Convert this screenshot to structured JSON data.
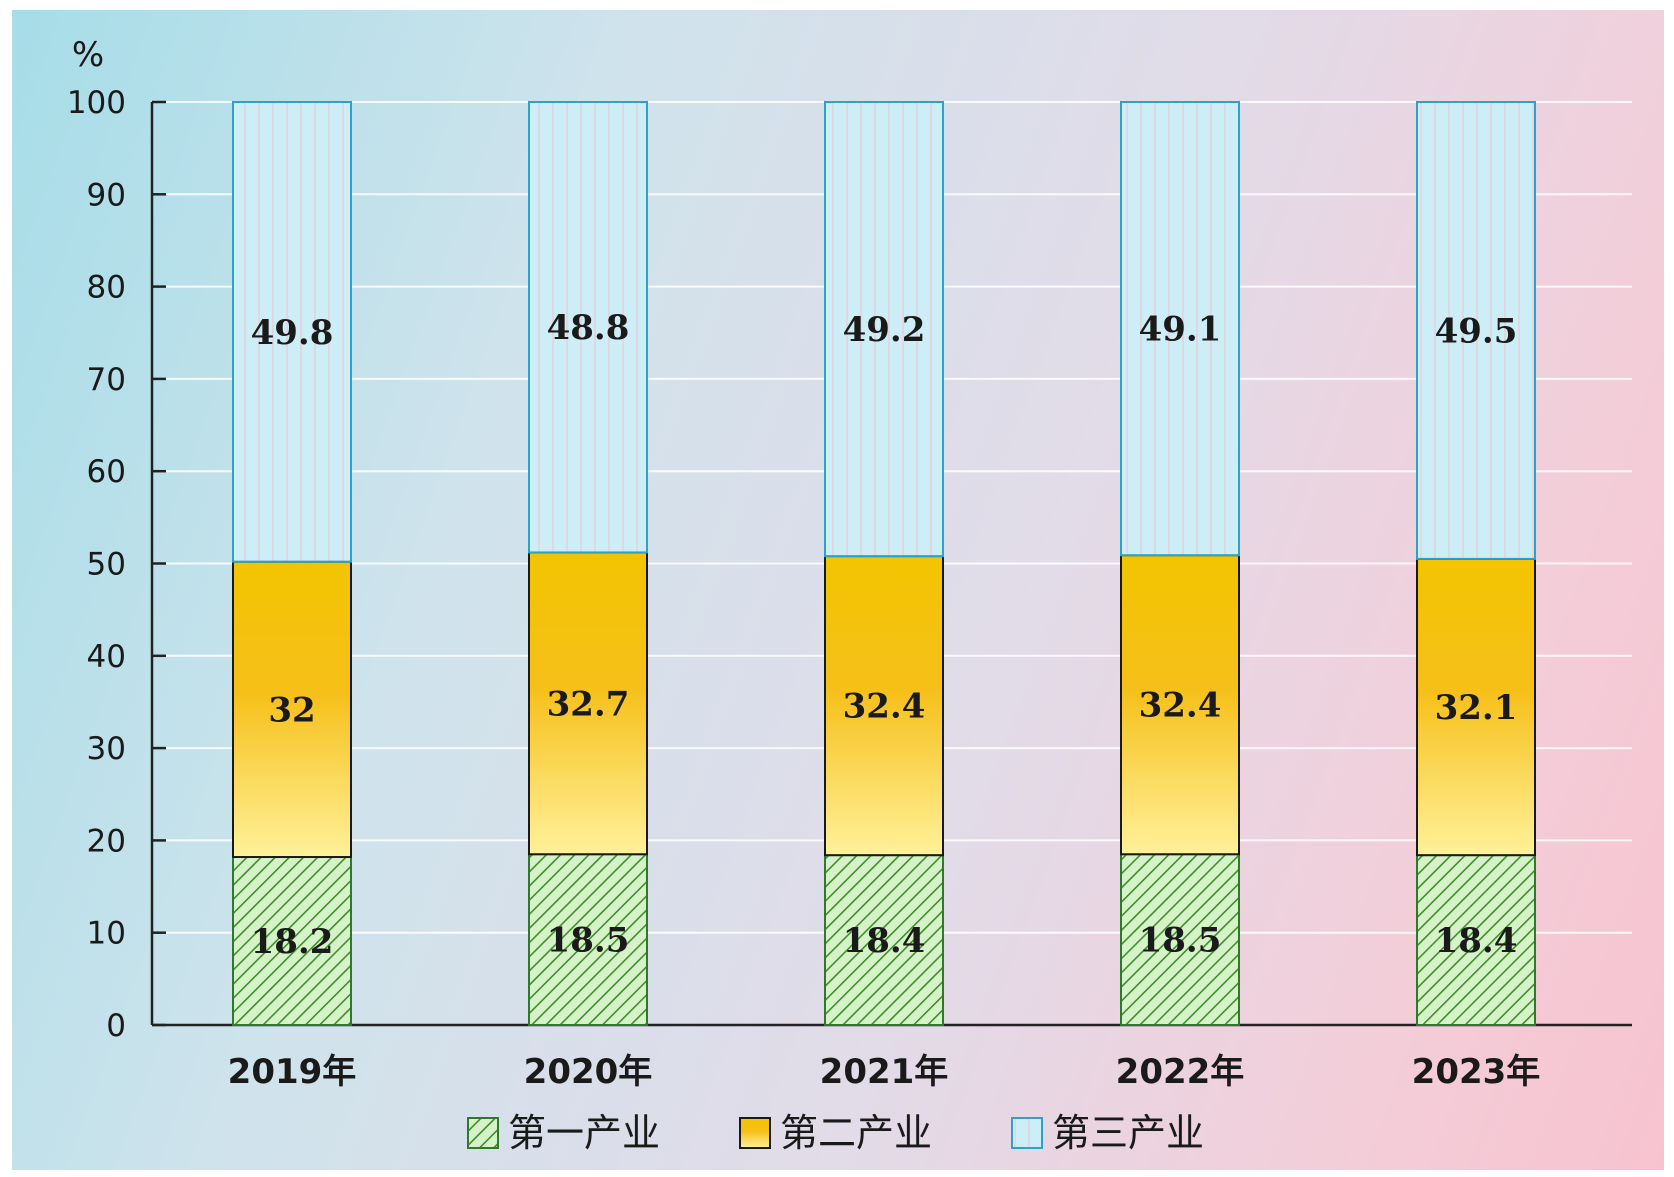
{
  "chart_data": {
    "type": "bar",
    "stacked": true,
    "categories": [
      "2019年",
      "2020年",
      "2021年",
      "2022年",
      "2023年"
    ],
    "series": [
      {
        "name": "第一产业",
        "values": [
          18.2,
          18.5,
          18.4,
          18.5,
          18.4
        ],
        "color": "#8fd27a",
        "pattern": "diagonal-hatch"
      },
      {
        "name": "第二产业",
        "values": [
          32,
          32.7,
          32.4,
          32.4,
          32.1
        ],
        "color": "#f5c400"
      },
      {
        "name": "第三产业",
        "values": [
          49.8,
          48.8,
          49.2,
          49.1,
          49.5
        ],
        "color": "#c9ecf6"
      }
    ],
    "data_labels": [
      [
        "18.2",
        "18.5",
        "18.4",
        "18.5",
        "18.4"
      ],
      [
        "32",
        "32.7",
        "32.4",
        "32.4",
        "32.1"
      ],
      [
        "49.8",
        "48.8",
        "49.2",
        "49.1",
        "49.5"
      ]
    ],
    "ylabel": "%",
    "ylim": [
      0,
      100
    ],
    "yticks": [
      0,
      10,
      20,
      30,
      40,
      50,
      60,
      70,
      80,
      90,
      100
    ],
    "grid": true,
    "legend_position": "bottom"
  }
}
